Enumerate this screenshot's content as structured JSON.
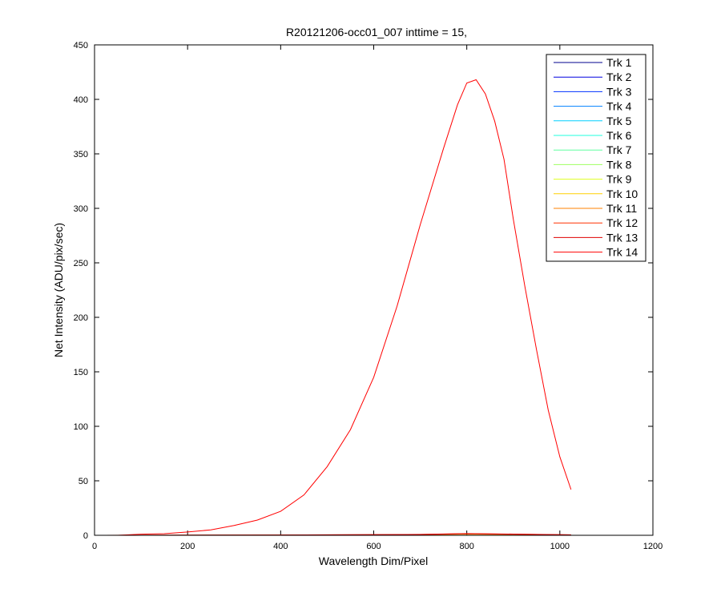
{
  "chart_data": {
    "type": "line",
    "title": "R20121206-occ01_007 inttime = 15,",
    "xlabel": "Wavelength Dim/Pixel",
    "ylabel": "Net Intensity (ADU/pix/sec)",
    "xlim": [
      0,
      1200
    ],
    "ylim": [
      0,
      450
    ],
    "x_ticks": [
      0,
      200,
      400,
      600,
      800,
      1000,
      1200
    ],
    "y_ticks": [
      0,
      50,
      100,
      150,
      200,
      250,
      300,
      350,
      400,
      450
    ],
    "grid": false,
    "legend_position": "top-right",
    "series": [
      {
        "name": "Trk 1",
        "color": "#00008f",
        "x": [
          0,
          1024
        ],
        "y": [
          0,
          0
        ]
      },
      {
        "name": "Trk 2",
        "color": "#0000df",
        "x": [
          0,
          1024
        ],
        "y": [
          0,
          0
        ]
      },
      {
        "name": "Trk 3",
        "color": "#0030ff",
        "x": [
          0,
          1024
        ],
        "y": [
          0,
          0
        ]
      },
      {
        "name": "Trk 4",
        "color": "#0080ff",
        "x": [
          0,
          1024
        ],
        "y": [
          0,
          0
        ]
      },
      {
        "name": "Trk 5",
        "color": "#00cfff",
        "x": [
          0,
          1024
        ],
        "y": [
          0,
          0
        ]
      },
      {
        "name": "Trk 6",
        "color": "#20ffdf",
        "x": [
          0,
          1024
        ],
        "y": [
          0,
          0
        ]
      },
      {
        "name": "Trk 7",
        "color": "#60ff9f",
        "x": [
          0,
          1024
        ],
        "y": [
          0,
          0
        ]
      },
      {
        "name": "Trk 8",
        "color": "#9fff60",
        "x": [
          0,
          1024
        ],
        "y": [
          0,
          0
        ]
      },
      {
        "name": "Trk 9",
        "color": "#dfff20",
        "x": [
          0,
          1024
        ],
        "y": [
          0,
          0
        ]
      },
      {
        "name": "Trk 10",
        "color": "#ffcf00",
        "x": [
          0,
          1024
        ],
        "y": [
          0,
          0.2
        ]
      },
      {
        "name": "Trk 11",
        "color": "#ff8000",
        "x": [
          0,
          400,
          700,
          800,
          900,
          1024
        ],
        "y": [
          0,
          0.2,
          0.5,
          1.2,
          0.8,
          0.3
        ]
      },
      {
        "name": "Trk 12",
        "color": "#ff3000",
        "x": [
          0,
          400,
          700,
          800,
          900,
          1024
        ],
        "y": [
          0,
          0.3,
          0.7,
          1.5,
          1.0,
          0.4
        ]
      },
      {
        "name": "Trk 13",
        "color": "#df0000",
        "x": [
          0,
          400,
          700,
          800,
          900,
          1024
        ],
        "y": [
          0,
          0.3,
          0.8,
          1.6,
          1.1,
          0.5
        ]
      },
      {
        "name": "Trk 14",
        "color": "#ff0000",
        "x": [
          0,
          50,
          100,
          150,
          200,
          250,
          300,
          350,
          400,
          450,
          500,
          550,
          600,
          650,
          700,
          750,
          780,
          800,
          820,
          840,
          860,
          880,
          900,
          925,
          950,
          975,
          1000,
          1024
        ],
        "y": [
          0,
          0,
          1,
          1.5,
          3,
          5,
          9,
          14,
          22,
          37,
          63,
          97,
          145,
          210,
          285,
          355,
          395,
          415,
          418,
          405,
          380,
          345,
          290,
          228,
          170,
          115,
          72,
          42
        ]
      }
    ]
  }
}
